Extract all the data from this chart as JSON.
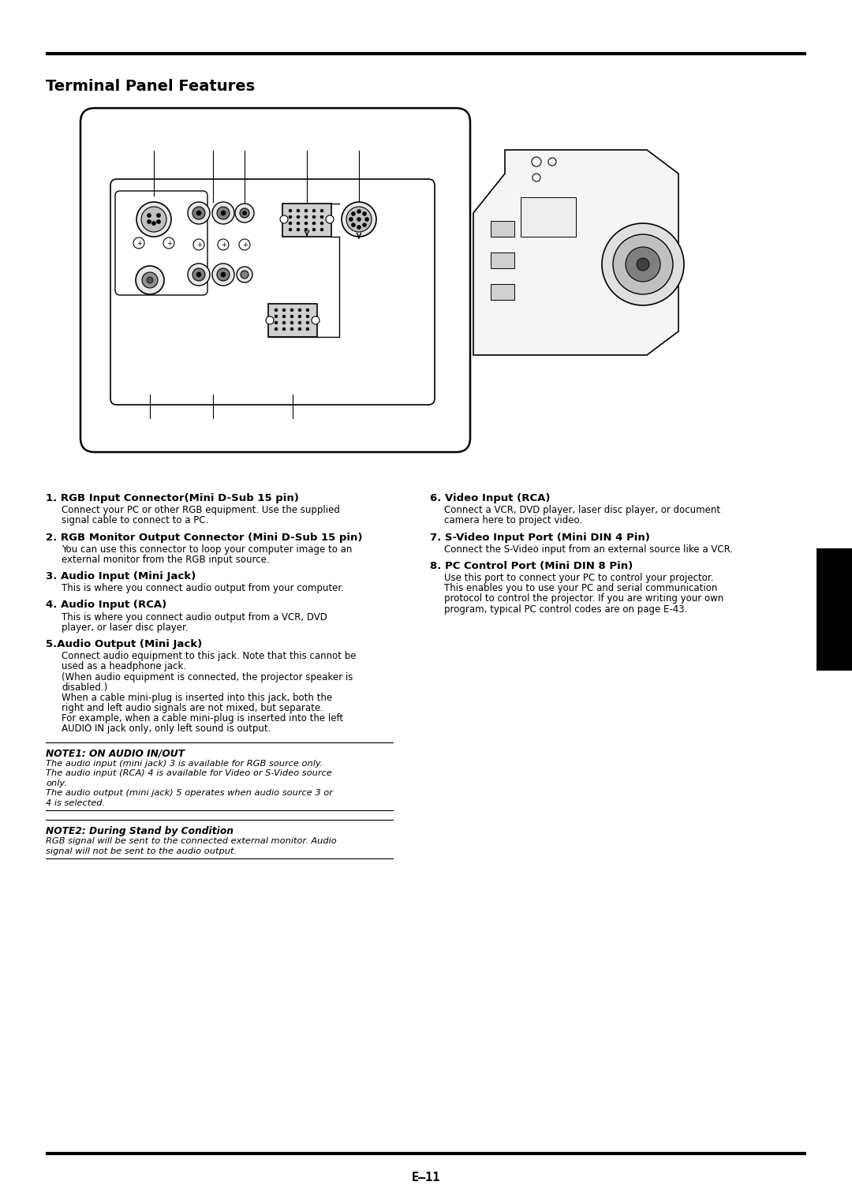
{
  "title": "Terminal Panel Features",
  "page_number": "E–11",
  "background_color": "#ffffff",
  "text_color": "#000000",
  "sections_left": [
    {
      "heading": "1. RGB Input Connector(Mini D-Sub 15 pin)",
      "body": "Connect your PC or other RGB equipment. Use the supplied\nsignal cable to connect to a PC."
    },
    {
      "heading": "2. RGB Monitor Output Connector (Mini D-Sub 15 pin)",
      "body": "You can use this connector to loop your computer image to an\nexternal monitor from the RGB input source."
    },
    {
      "heading": "3. Audio Input (Mini Jack)",
      "body": "This is where you connect audio output from your computer."
    },
    {
      "heading": "4. Audio Input (RCA)",
      "body": "This is where you connect audio output from a VCR, DVD\nplayer, or laser disc player."
    },
    {
      "heading": "5.Audio Output (Mini Jack)",
      "body": "Connect audio equipment to this jack. Note that this cannot be\nused as a headphone jack.\n(When audio equipment is connected, the projector speaker is\ndisabled.)\nWhen a cable mini-plug is inserted into this jack, both the\nright and left audio signals are not mixed, but separate.\nFor example, when a cable mini-plug is inserted into the left\nAUDIO IN jack only, only left sound is output."
    }
  ],
  "sections_right": [
    {
      "heading": "6. Video Input (RCA)",
      "body": "Connect a VCR, DVD player, laser disc player, or document\ncamera here to project video."
    },
    {
      "heading": "7. S-Video Input Port (Mini DIN 4 Pin)",
      "body": "Connect the S-Video input from an external source like a VCR."
    },
    {
      "heading": "8. PC Control Port (Mini DIN 8 Pin)",
      "body": "Use this port to connect your PC to control your projector.\nThis enables you to use your PC and serial communication\nprotocol to control the projector. If you are writing your own\nprogram, typical PC control codes are on page E-43."
    }
  ],
  "note1_title": "NOTE1: ON AUDIO IN/OUT",
  "note1_body": "The audio input (mini jack) 3 is available for RGB source only.\nThe audio input (RCA) 4 is available for Video or S-Video source\nonly.\nThe audio output (mini jack) 5 operates when audio source 3 or\n4 is selected.",
  "note2_title": "NOTE2: During Stand by Condition",
  "note2_body": "RGB signal will be sent to the connected external monitor. Audio\nsignal will not be sent to the audio output."
}
